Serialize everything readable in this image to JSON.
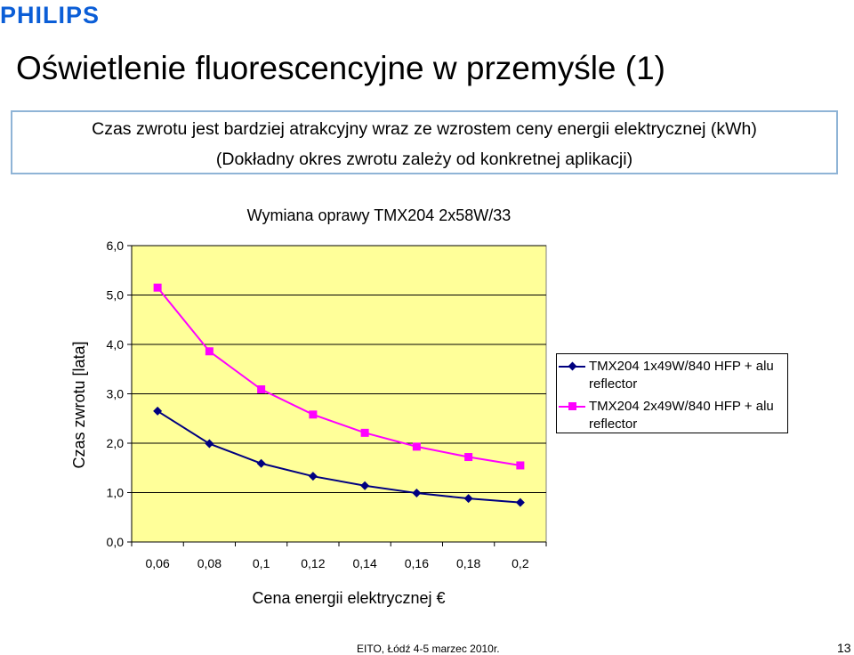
{
  "header": {
    "logo_text": "PHILIPS",
    "logo_color": "#0b5ed7",
    "slide_title": "Oświetlenie fluorescencyjne w przemyśle (1)"
  },
  "callout": {
    "line1": "Czas zwrotu jest bardziej atrakcyjny wraz ze wzrostem ceny energii elektrycznej (kWh)",
    "line2": "(Dokładny okres zwrotu zależy od konkretnej aplikacji)",
    "border_color": "#8fb4d6"
  },
  "chart_data": {
    "type": "line",
    "title": "Wymiana oprawy TMX204 2x58W/33",
    "xlabel": "Cena energii elektrycznej €",
    "ylabel": "Czas zwrotu [lata]",
    "x": [
      0.06,
      0.08,
      0.1,
      0.12,
      0.14,
      0.16,
      0.18,
      0.2
    ],
    "x_tick_labels": [
      "0,06",
      "0,08",
      "0,1",
      "0,12",
      "0,14",
      "0,16",
      "0,18",
      "0,2"
    ],
    "y_ticks": [
      0,
      1,
      2,
      3,
      4,
      5,
      6
    ],
    "y_tick_labels": [
      "0,0",
      "1,0",
      "2,0",
      "3,0",
      "4,0",
      "5,0",
      "6,0"
    ],
    "ylim": [
      0,
      6
    ],
    "grid": "horizontal",
    "plot_background": "#ffff99",
    "legend_position": "right",
    "series": [
      {
        "name": "TMX204 1x49W/840 HFP + alu reflector",
        "color": "#000080",
        "marker": "diamond",
        "values": [
          2.65,
          1.99,
          1.59,
          1.33,
          1.14,
          0.99,
          0.88,
          0.8
        ]
      },
      {
        "name": "TMX204 2x49W/840 HFP + alu reflector",
        "color": "#ff00ff",
        "marker": "square",
        "values": [
          5.15,
          3.86,
          3.09,
          2.58,
          2.21,
          1.93,
          1.72,
          1.55
        ]
      }
    ]
  },
  "footer": {
    "text": "EITO, Łódź 4-5 marzec 2010r.",
    "page_number": "13"
  }
}
